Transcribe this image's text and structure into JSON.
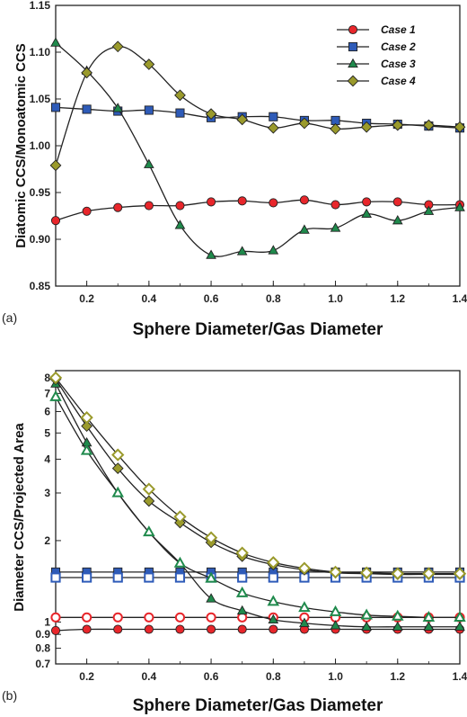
{
  "chart_data": [
    {
      "type": "line",
      "panel_label": "(a)",
      "xlabel": "Sphere Diameter/Gas Diameter",
      "ylabel": "Diatomic CCS/Monoatomic CCS",
      "xlim": [
        0.1,
        1.4
      ],
      "ylim": [
        0.85,
        1.15
      ],
      "xticks": [
        0.2,
        0.4,
        0.6,
        0.8,
        1.0,
        1.2,
        1.4
      ],
      "xtick_labels": [
        "0.2",
        "0.4",
        "0.6",
        "0.8",
        "1.0",
        "1.2",
        "1.4"
      ],
      "yticks": [
        0.85,
        0.9,
        0.95,
        1.0,
        1.05,
        1.1,
        1.15
      ],
      "ytick_labels": [
        "0.85",
        "0.90",
        "0.95",
        "1.00",
        "1.05",
        "1.10",
        "1.15"
      ],
      "grid": false,
      "legend_position": "top-right",
      "x": [
        0.1,
        0.2,
        0.3,
        0.4,
        0.5,
        0.6,
        0.7,
        0.8,
        0.9,
        1.0,
        1.1,
        1.2,
        1.3,
        1.4
      ],
      "series": [
        {
          "name": "Case 1",
          "marker": "circle",
          "color": "#e8262b",
          "values": [
            0.92,
            0.93,
            0.934,
            0.936,
            0.936,
            0.94,
            0.941,
            0.939,
            0.942,
            0.937,
            0.94,
            0.94,
            0.937,
            0.937
          ]
        },
        {
          "name": "Case 2",
          "marker": "square",
          "color": "#2e5bb8",
          "values": [
            1.041,
            1.039,
            1.037,
            1.038,
            1.035,
            1.03,
            1.031,
            1.031,
            1.027,
            1.027,
            1.024,
            1.023,
            1.021,
            1.019
          ]
        },
        {
          "name": "Case 3",
          "marker": "triangle",
          "color": "#1f8a4c",
          "values": [
            1.11,
            1.08,
            1.04,
            0.98,
            0.915,
            0.883,
            0.887,
            0.888,
            0.91,
            0.912,
            0.927,
            0.92,
            0.93,
            0.934
          ]
        },
        {
          "name": "Case 4",
          "marker": "diamond",
          "color": "#9a9a2c",
          "values": [
            0.979,
            1.078,
            1.106,
            1.087,
            1.054,
            1.034,
            1.028,
            1.019,
            1.024,
            1.018,
            1.02,
            1.022,
            1.022,
            1.02
          ]
        }
      ]
    },
    {
      "type": "line",
      "panel_label": "(b)",
      "xlabel": "Sphere Diameter/Gas Diameter",
      "ylabel": "Diameter CCS/Projected Area",
      "xscale": "linear",
      "yscale": "log",
      "xlim": [
        0.1,
        1.4
      ],
      "ylim": [
        0.7,
        8.5
      ],
      "xticks": [
        0.2,
        0.4,
        0.6,
        0.8,
        1.0,
        1.2,
        1.4
      ],
      "xtick_labels": [
        "0.2",
        "0.4",
        "0.6",
        "0.8",
        "1.0",
        "1.2",
        "1.4"
      ],
      "yticks": [
        0.7,
        0.8,
        0.9,
        1,
        2,
        3,
        4,
        5,
        6,
        7,
        8
      ],
      "ytick_labels": [
        "0.7",
        "0.8",
        "0.9",
        "1",
        "2",
        "3",
        "4",
        "5",
        "6",
        "7",
        "8"
      ],
      "grid": false,
      "legend_position": "none",
      "x": [
        0.1,
        0.2,
        0.3,
        0.4,
        0.5,
        0.6,
        0.7,
        0.8,
        0.9,
        1.0,
        1.1,
        1.2,
        1.3,
        1.4
      ],
      "series": [
        {
          "marker": "circle",
          "fill": "filled",
          "color": "#e8262b",
          "values": [
            0.93,
            0.94,
            0.94,
            0.94,
            0.94,
            0.94,
            0.94,
            0.94,
            0.94,
            0.94,
            0.94,
            0.94,
            0.94,
            0.94
          ]
        },
        {
          "marker": "circle",
          "fill": "open",
          "color": "#e8262b",
          "values": [
            1.04,
            1.04,
            1.04,
            1.04,
            1.04,
            1.04,
            1.04,
            1.04,
            1.04,
            1.04,
            1.04,
            1.04,
            1.04,
            1.04
          ]
        },
        {
          "marker": "square",
          "fill": "filled",
          "color": "#2e5bb8",
          "values": [
            1.53,
            1.53,
            1.53,
            1.53,
            1.53,
            1.53,
            1.53,
            1.53,
            1.53,
            1.53,
            1.53,
            1.53,
            1.53,
            1.53
          ]
        },
        {
          "marker": "square",
          "fill": "open",
          "color": "#2e5bb8",
          "values": [
            1.46,
            1.46,
            1.46,
            1.46,
            1.46,
            1.46,
            1.46,
            1.46,
            1.46,
            1.46,
            1.46,
            1.46,
            1.46,
            1.46
          ]
        },
        {
          "marker": "triangle",
          "fill": "filled",
          "color": "#1f8a4c",
          "values": [
            7.6,
            4.6,
            3.0,
            2.15,
            1.65,
            1.22,
            1.1,
            1.02,
            0.99,
            0.97,
            0.96,
            0.96,
            0.96,
            0.96
          ]
        },
        {
          "marker": "triangle",
          "fill": "open",
          "color": "#1f8a4c",
          "values": [
            6.8,
            4.3,
            3.0,
            2.15,
            1.65,
            1.45,
            1.28,
            1.19,
            1.13,
            1.09,
            1.06,
            1.05,
            1.04,
            1.04
          ]
        },
        {
          "marker": "diamond",
          "fill": "filled",
          "color": "#9a9a2c",
          "values": [
            7.9,
            5.3,
            3.7,
            2.8,
            2.33,
            1.97,
            1.75,
            1.63,
            1.56,
            1.52,
            1.51,
            1.5,
            1.5,
            1.5
          ]
        },
        {
          "marker": "diamond",
          "fill": "open",
          "color": "#9a9a2c",
          "values": [
            8.0,
            5.7,
            4.15,
            3.1,
            2.45,
            2.05,
            1.8,
            1.66,
            1.58,
            1.53,
            1.52,
            1.51,
            1.51,
            1.51
          ]
        }
      ]
    }
  ]
}
